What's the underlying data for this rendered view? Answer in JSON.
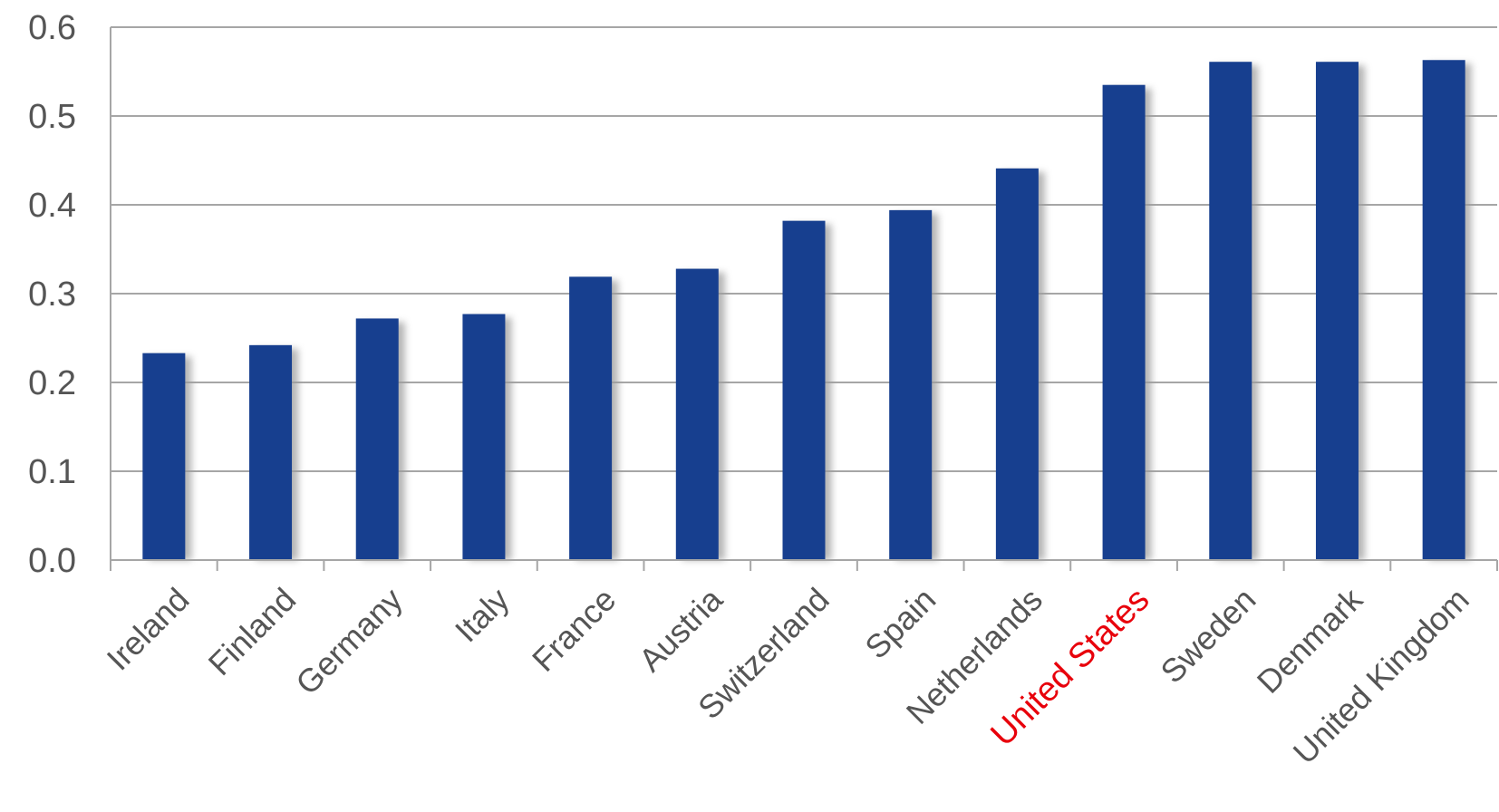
{
  "chart_data": {
    "type": "bar",
    "categories": [
      "Ireland",
      "Finland",
      "Germany",
      "Italy",
      "France",
      "Austria",
      "Switzerland",
      "Spain",
      "Netherlands",
      "United States",
      "Sweden",
      "Denmark",
      "United Kingdom"
    ],
    "values": [
      0.233,
      0.242,
      0.272,
      0.277,
      0.319,
      0.328,
      0.382,
      0.394,
      0.441,
      0.535,
      0.561,
      0.561,
      0.563
    ],
    "ylim": [
      0,
      0.6
    ],
    "yticks": [
      "0.0",
      "0.1",
      "0.2",
      "0.3",
      "0.4",
      "0.5",
      "0.6"
    ],
    "highlight_category": "United States",
    "grid": true,
    "colors": {
      "bar": "#173f8f",
      "bar_shadow": "#9c9c9c",
      "highlight_label": "#e8000b",
      "label": "#555555",
      "grid": "#a6a6a6"
    }
  }
}
